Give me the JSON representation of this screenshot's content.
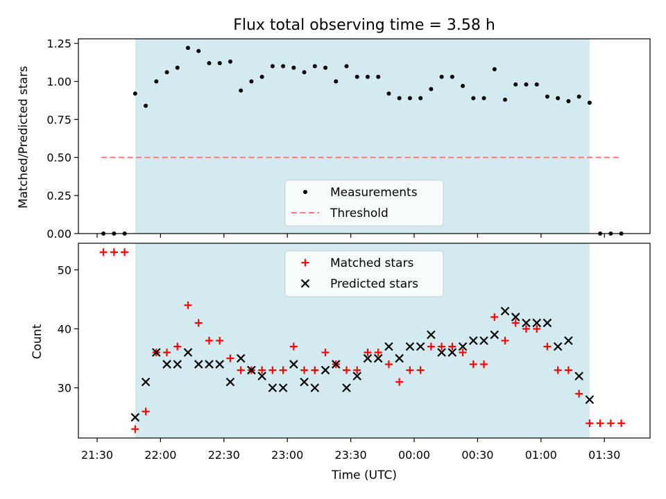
{
  "chart_data": [
    {
      "type": "scatter",
      "title": "Flux total observing time = 3.58 h",
      "xlabel": "",
      "ylabel": "Matched/Predicted stars",
      "ylim": [
        0,
        1.28
      ],
      "yticks": [
        "0.00",
        "0.25",
        "0.50",
        "0.75",
        "1.00",
        "1.25"
      ],
      "shaded_region": {
        "start": "21:48",
        "end": "01:23",
        "color": "#d3eaf0"
      },
      "legend": {
        "position": "bottom-center",
        "entries": [
          "Measurements",
          "Threshold"
        ]
      },
      "threshold": {
        "name": "Threshold",
        "value": 0.5,
        "x_start": "21:32",
        "x_end": "01:38",
        "color": "#ff7777"
      },
      "series": [
        {
          "name": "Measurements",
          "color": "#000000",
          "marker": "dot",
          "times": [
            "21:33",
            "21:38",
            "21:43",
            "21:48",
            "21:53",
            "21:58",
            "22:03",
            "22:08",
            "22:13",
            "22:18",
            "22:23",
            "22:28",
            "22:33",
            "22:38",
            "22:43",
            "22:48",
            "22:53",
            "22:58",
            "23:03",
            "23:08",
            "23:13",
            "23:18",
            "23:23",
            "23:28",
            "23:33",
            "23:38",
            "23:43",
            "23:48",
            "23:53",
            "23:58",
            "00:03",
            "00:08",
            "00:13",
            "00:18",
            "00:23",
            "00:28",
            "00:33",
            "00:38",
            "00:43",
            "00:48",
            "00:53",
            "00:58",
            "01:03",
            "01:08",
            "01:13",
            "01:18",
            "01:23",
            "01:28",
            "01:33",
            "01:38"
          ],
          "values": [
            0,
            0,
            0,
            0.92,
            0.84,
            1.0,
            1.06,
            1.09,
            1.22,
            1.2,
            1.12,
            1.12,
            1.13,
            0.94,
            1.0,
            1.03,
            1.1,
            1.1,
            1.09,
            1.06,
            1.1,
            1.09,
            1.0,
            1.1,
            1.03,
            1.03,
            1.03,
            0.92,
            0.89,
            0.89,
            0.89,
            0.95,
            1.03,
            1.03,
            0.97,
            0.89,
            0.89,
            1.08,
            0.88,
            0.98,
            0.98,
            0.98,
            0.9,
            0.89,
            0.87,
            0.9,
            0.86,
            0,
            0,
            0
          ]
        }
      ]
    },
    {
      "type": "scatter",
      "title": "",
      "xlabel": "Time (UTC)",
      "ylabel": "Count",
      "ylim": [
        21.5,
        54.5
      ],
      "yticks": [
        "30",
        "40",
        "50"
      ],
      "xticks": [
        "21:30",
        "22:00",
        "22:30",
        "23:00",
        "23:30",
        "00:00",
        "00:30",
        "01:00",
        "01:30"
      ],
      "shaded_region": {
        "start": "21:48",
        "end": "01:23",
        "color": "#d3eaf0"
      },
      "legend": {
        "position": "top-center",
        "entries": [
          "Matched stars",
          "Predicted stars"
        ]
      },
      "series": [
        {
          "name": "Matched stars",
          "color": "#ff0000",
          "marker": "plus",
          "times": [
            "21:33",
            "21:38",
            "21:43",
            "21:48",
            "21:53",
            "21:58",
            "22:03",
            "22:08",
            "22:13",
            "22:18",
            "22:23",
            "22:28",
            "22:33",
            "22:38",
            "22:43",
            "22:48",
            "22:53",
            "22:58",
            "23:03",
            "23:08",
            "23:13",
            "23:18",
            "23:23",
            "23:28",
            "23:33",
            "23:38",
            "23:43",
            "23:48",
            "23:53",
            "23:58",
            "00:03",
            "00:08",
            "00:13",
            "00:18",
            "00:23",
            "00:28",
            "00:33",
            "00:38",
            "00:43",
            "00:48",
            "00:53",
            "00:58",
            "01:03",
            "01:08",
            "01:13",
            "01:18",
            "01:23",
            "01:28",
            "01:33",
            "01:38"
          ],
          "values": [
            53,
            53,
            53,
            23,
            26,
            36,
            36,
            37,
            44,
            41,
            38,
            38,
            35,
            33,
            33,
            33,
            33,
            33,
            37,
            33,
            33,
            36,
            34,
            33,
            33,
            36,
            36,
            34,
            31,
            33,
            33,
            37,
            37,
            37,
            36,
            34,
            34,
            42,
            38,
            41,
            40,
            40,
            37,
            33,
            33,
            29,
            24,
            24,
            24,
            24
          ]
        },
        {
          "name": "Predicted stars",
          "color": "#000000",
          "marker": "x",
          "times": [
            "21:48",
            "21:53",
            "21:58",
            "22:03",
            "22:08",
            "22:13",
            "22:18",
            "22:23",
            "22:28",
            "22:33",
            "22:38",
            "22:43",
            "22:48",
            "22:53",
            "22:58",
            "23:03",
            "23:08",
            "23:13",
            "23:18",
            "23:23",
            "23:28",
            "23:33",
            "23:38",
            "23:43",
            "23:48",
            "23:53",
            "23:58",
            "00:03",
            "00:08",
            "00:13",
            "00:18",
            "00:23",
            "00:28",
            "00:33",
            "00:38",
            "00:43",
            "00:48",
            "00:53",
            "00:58",
            "01:03",
            "01:08",
            "01:13",
            "01:18",
            "01:23"
          ],
          "values": [
            25,
            31,
            36,
            34,
            34,
            36,
            34,
            34,
            34,
            31,
            35,
            33,
            32,
            30,
            30,
            34,
            31,
            30,
            33,
            34,
            30,
            32,
            35,
            35,
            37,
            35,
            37,
            37,
            39,
            36,
            36,
            37,
            38,
            38,
            39,
            43,
            42,
            41,
            41,
            41,
            37,
            38,
            32,
            28
          ]
        }
      ]
    }
  ]
}
